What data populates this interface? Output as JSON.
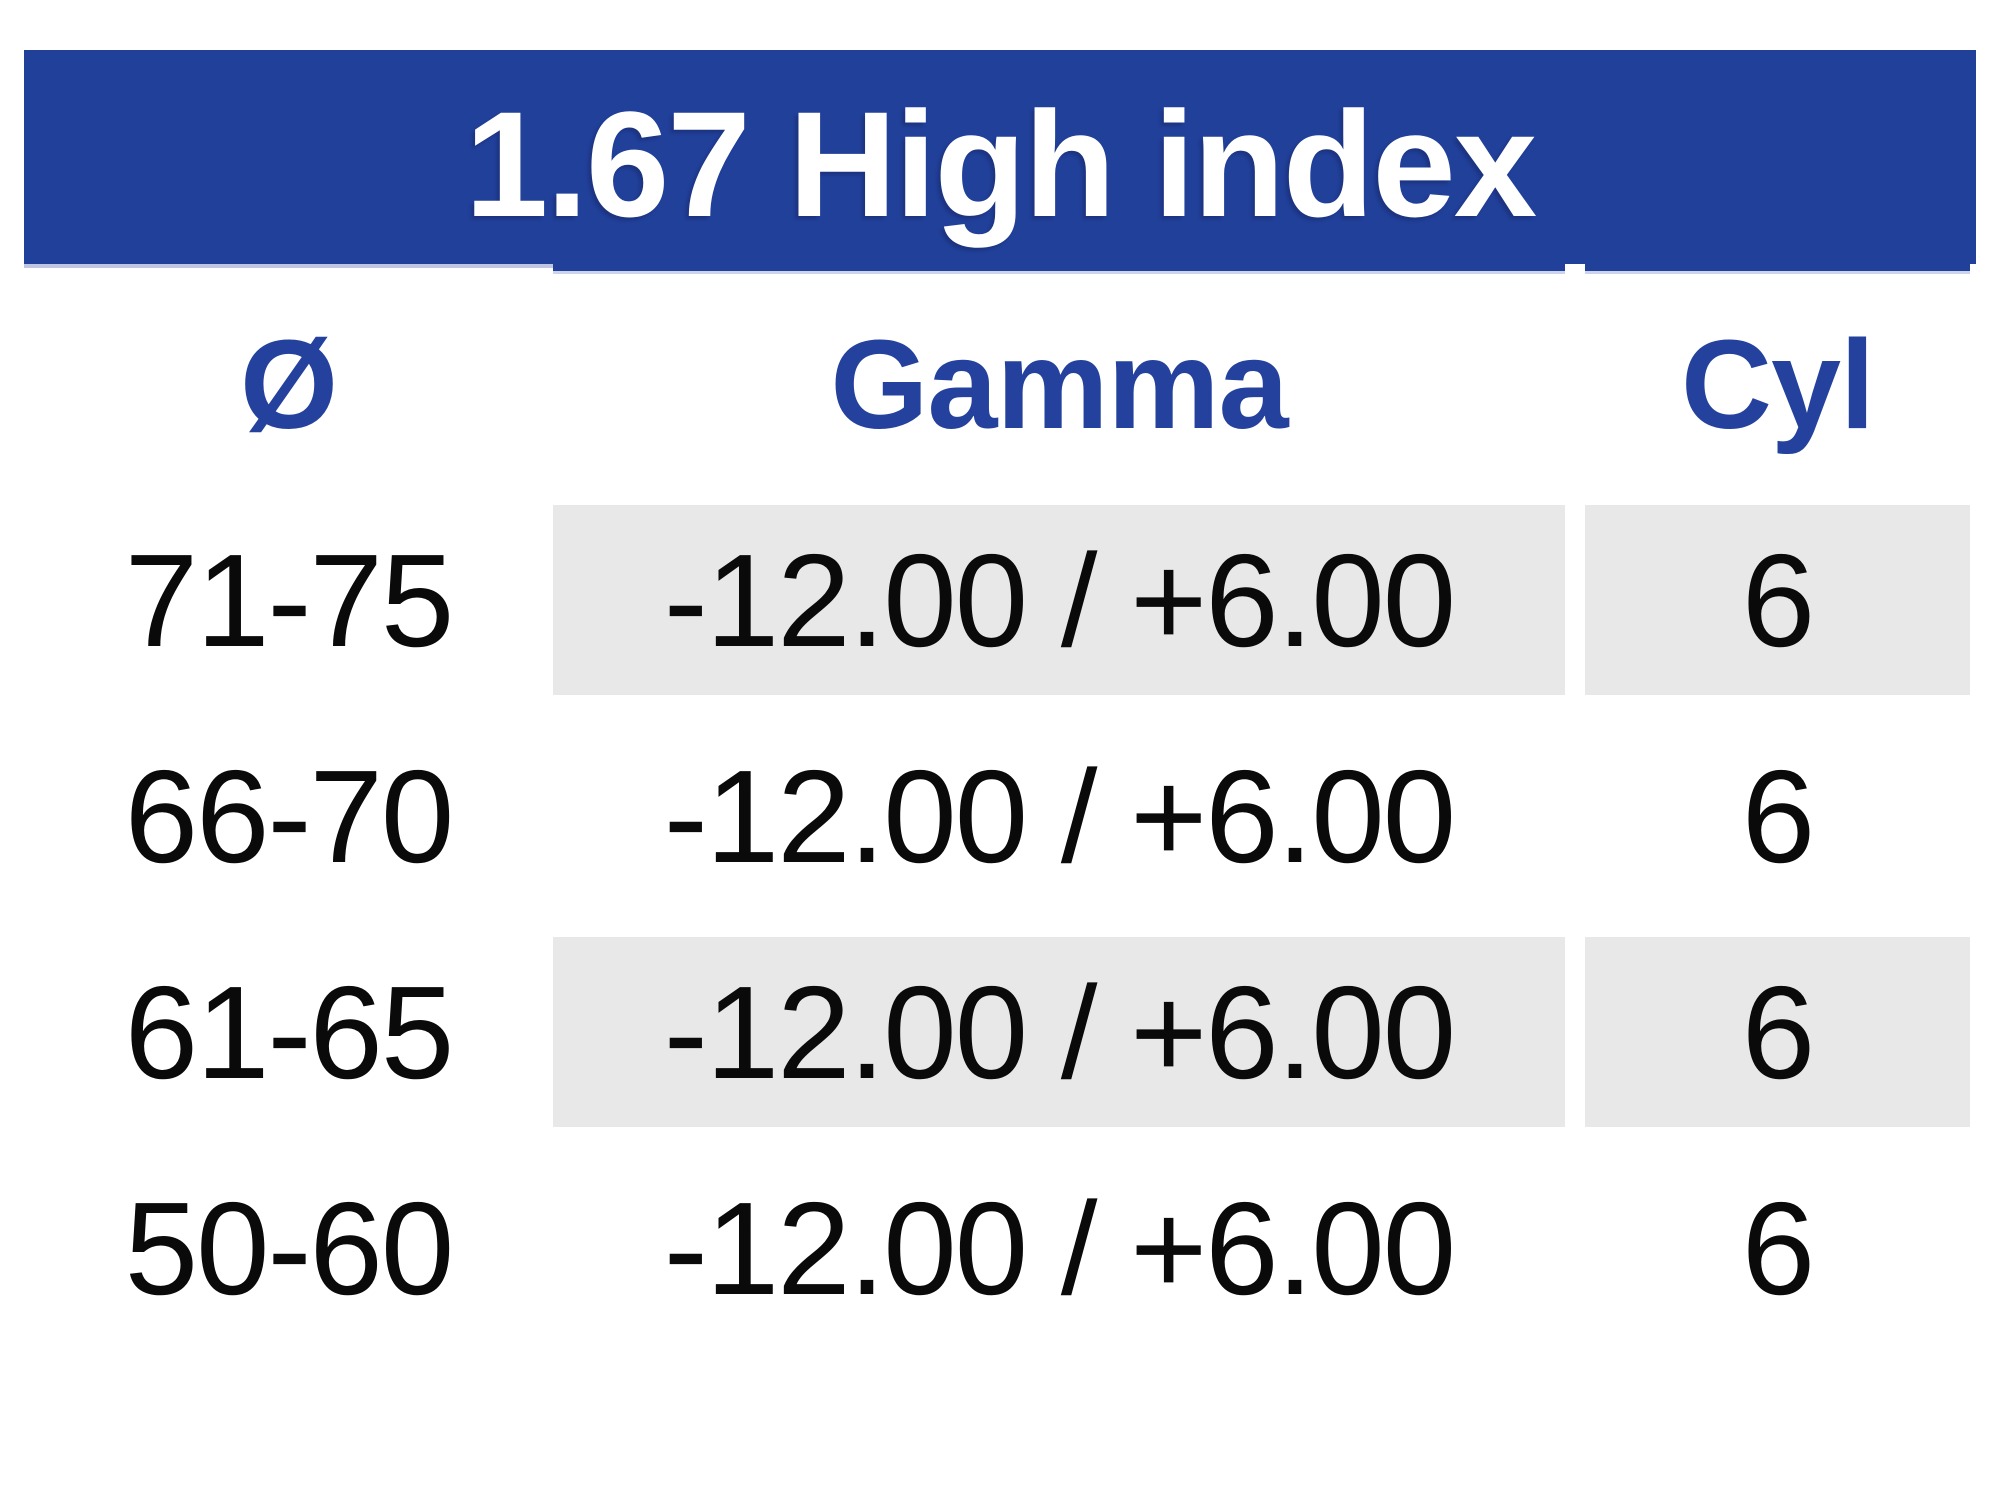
{
  "table": {
    "title": "1.67 High index",
    "columns": [
      {
        "key": "diameter",
        "label": "Ø"
      },
      {
        "key": "gamma",
        "label": "Gamma"
      },
      {
        "key": "cyl",
        "label": "Cyl"
      }
    ],
    "rows": [
      {
        "diameter": "71-75",
        "gamma": "-12.00 / +6.00",
        "cyl": "6",
        "shaded": true
      },
      {
        "diameter": "66-70",
        "gamma": "-12.00 / +6.00",
        "cyl": "6",
        "shaded": false
      },
      {
        "diameter": "61-65",
        "gamma": "-12.00 / +6.00",
        "cyl": "6",
        "shaded": true
      },
      {
        "diameter": "50-60",
        "gamma": "-12.00 / +6.00",
        "cyl": "6",
        "shaded": false
      }
    ],
    "colors": {
      "banner_blue": "#21409a",
      "header_text_blue": "#24429d",
      "shaded_cell_gray": "#e8e8e8",
      "banner_shadow_lavender": "#bfc6e2",
      "body_text_black": "#0a0a0a",
      "title_text_white": "#ffffff"
    }
  }
}
